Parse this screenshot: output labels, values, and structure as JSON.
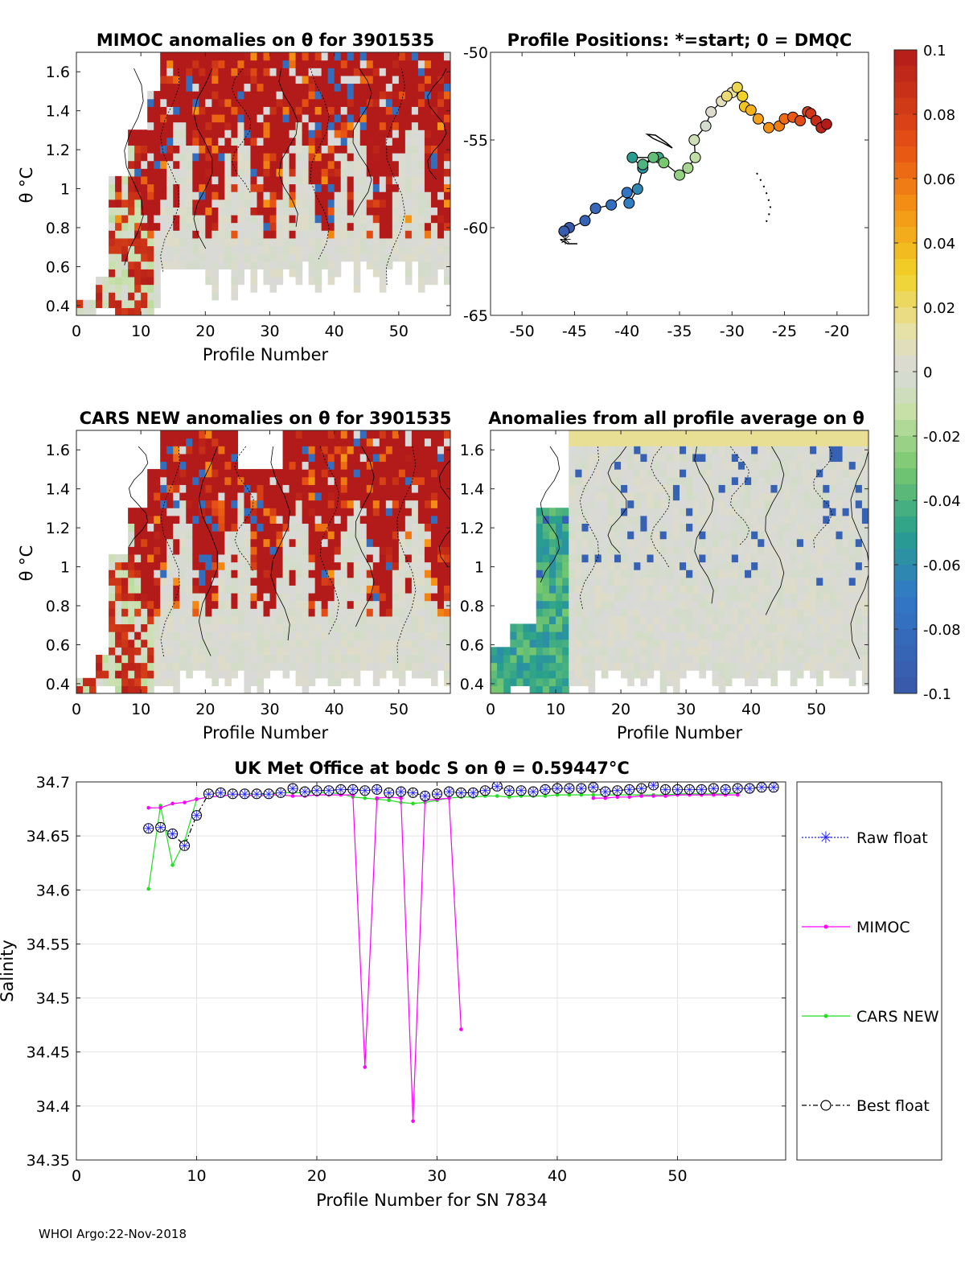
{
  "colors": {
    "raw_float": "#1f1fff",
    "mimoc": "#ff00ff",
    "cars": "#22dd22",
    "best_float": "#000000",
    "anomaly_high": "#b31a1a",
    "anomaly_zero": "#d9d9d9",
    "anomaly_low": "#3a57a8"
  },
  "footer": "WHOI Argo:22-Nov-2018",
  "colorbar": {
    "ticks": [
      "0.1",
      "0.08",
      "0.06",
      "0.04",
      "0.02",
      "0",
      "-0.02",
      "-0.04",
      "-0.06",
      "-0.08",
      "-0.1"
    ],
    "range": [
      -0.1,
      0.1
    ]
  },
  "chart_data": [
    {
      "id": "mimoc",
      "type": "heatmap",
      "title": "MIMOC anomalies on θ  for 3901535",
      "xlabel": "Profile Number",
      "ylabel": "θ °C",
      "xlim": [
        0,
        58
      ],
      "ylim": [
        0.35,
        1.7
      ],
      "x_ticks": [
        "0",
        "10",
        "20",
        "30",
        "40",
        "50"
      ],
      "y_ticks": [
        "0.4",
        "0.6",
        "0.8",
        "1",
        "1.2",
        "1.4",
        "1.6"
      ]
    },
    {
      "id": "positions",
      "type": "line",
      "title": "Profile Positions: *=start; 0 = DMQC",
      "xlim": [
        -53,
        -17
      ],
      "ylim": [
        -65,
        -50
      ],
      "x_ticks": [
        "-50",
        "-45",
        "-40",
        "-35",
        "-30",
        "-25",
        "-20"
      ],
      "y_ticks": [
        "-50",
        "-55",
        "-60",
        "-65"
      ],
      "lon": [
        -45.5,
        -46,
        -44,
        -43,
        -41.5,
        -40,
        -39.8,
        -39,
        -38.5,
        -39.5,
        -37,
        -38.5,
        -37.5,
        -36.5,
        -35,
        -34.2,
        -33.5,
        -33.6,
        -32.5,
        -32,
        -31,
        -30,
        -30.5,
        -29.5,
        -29,
        -28.8,
        -28.2,
        -27.5,
        -26.5,
        -25.5,
        -25,
        -24.2,
        -23.5,
        -22.8,
        -22.5,
        -22,
        -21.5,
        -21
      ],
      "lat": [
        -60,
        -60.2,
        -59.6,
        -58.9,
        -58.7,
        -58,
        -58.6,
        -57.8,
        -56.6,
        -56,
        -56,
        -56.4,
        -56,
        -56.3,
        -57,
        -56.6,
        -56,
        -55,
        -54.2,
        -53.4,
        -52.8,
        -52.3,
        -52.5,
        -52,
        -52.5,
        -53.1,
        -53.3,
        -53.8,
        -54.3,
        -54.2,
        -53.8,
        -53.7,
        -53.9,
        -53.4,
        -53.5,
        -53.9,
        -54.3,
        -54.1
      ]
    },
    {
      "id": "cars",
      "type": "heatmap",
      "title": "CARS NEW anomalies on θ for 3901535",
      "xlabel": "Profile Number",
      "ylabel": "θ °C",
      "xlim": [
        0,
        58
      ],
      "ylim": [
        0.35,
        1.7
      ],
      "x_ticks": [
        "0",
        "10",
        "20",
        "30",
        "40",
        "50"
      ],
      "y_ticks": [
        "0.4",
        "0.6",
        "0.8",
        "1",
        "1.2",
        "1.4",
        "1.6"
      ]
    },
    {
      "id": "avg",
      "type": "heatmap",
      "title": "Anomalies from all profile average on θ",
      "xlabel": "Profile Number",
      "xlim": [
        0,
        58
      ],
      "ylim": [
        0.35,
        1.7
      ],
      "x_ticks": [
        "0",
        "10",
        "20",
        "30",
        "40",
        "50"
      ],
      "y_ticks": [
        "0.4",
        "0.6",
        "0.8",
        "1",
        "1.2",
        "1.4",
        "1.6"
      ]
    },
    {
      "id": "salinity",
      "type": "line",
      "title": "UK Met Office at bodc S on θ = 0.59447°C",
      "xlabel": "Profile Number for SN 7834",
      "ylabel": "Salinity",
      "xlim": [
        0,
        59
      ],
      "ylim": [
        34.35,
        34.7
      ],
      "x_ticks": [
        "0",
        "10",
        "20",
        "30",
        "40",
        "50"
      ],
      "y_ticks": [
        "34.35",
        "34.4",
        "34.45",
        "34.5",
        "34.55",
        "34.6",
        "34.65",
        "34.7"
      ],
      "legend": [
        "Raw float",
        "MIMOC",
        "CARS NEW",
        "Best float"
      ],
      "x_float": [
        6,
        7,
        8,
        9,
        10,
        11,
        12,
        13,
        14,
        15,
        16,
        17,
        18,
        19,
        20,
        21,
        22,
        23,
        24,
        25,
        26,
        27,
        28,
        29,
        30,
        31,
        32,
        33,
        34,
        35,
        36,
        37,
        38,
        39,
        40,
        41,
        42,
        43,
        44,
        45,
        46,
        47,
        48,
        49,
        50,
        51,
        52,
        53,
        54,
        55,
        56,
        57,
        58
      ],
      "raw_float": [
        34.657,
        34.658,
        34.652,
        34.641,
        34.669,
        34.689,
        34.69,
        34.689,
        34.689,
        34.689,
        34.689,
        34.69,
        34.694,
        34.691,
        34.692,
        34.692,
        34.693,
        34.693,
        34.692,
        34.693,
        34.69,
        34.691,
        34.69,
        34.687,
        34.689,
        34.691,
        34.69,
        34.69,
        34.692,
        34.696,
        34.692,
        34.692,
        34.691,
        34.693,
        34.694,
        34.694,
        34.694,
        34.695,
        34.691,
        34.692,
        34.693,
        34.694,
        34.697,
        34.693,
        34.693,
        34.693,
        34.693,
        34.694,
        34.693,
        34.694,
        34.694,
        34.695,
        34.695
      ],
      "x_mimoc": [
        6,
        7,
        8,
        9,
        10,
        11,
        12,
        13,
        14,
        15,
        16,
        17,
        18,
        19,
        20,
        21,
        22,
        23,
        24,
        25,
        26,
        27,
        28,
        29,
        30,
        31,
        32
      ],
      "mimoc": [
        34.676,
        34.676,
        34.68,
        34.681,
        34.684,
        34.686,
        34.687,
        34.688,
        34.688,
        34.687,
        34.688,
        34.688,
        34.687,
        34.687,
        34.688,
        34.688,
        34.688,
        34.688,
        34.436,
        34.685,
        34.686,
        34.685,
        34.386,
        34.683,
        34.684,
        34.685,
        34.471
      ],
      "x_cars": [
        6,
        7,
        8,
        9,
        10,
        11,
        12,
        13,
        14,
        15,
        16,
        17,
        18,
        19,
        20,
        21,
        22,
        23,
        24,
        25,
        26,
        27,
        28,
        29,
        30,
        31,
        32,
        33,
        34,
        35,
        36,
        37,
        38,
        39,
        40,
        41,
        42,
        43,
        44,
        45,
        46,
        47,
        48,
        49,
        50,
        51,
        52,
        53,
        54,
        55
      ],
      "cars": [
        34.601,
        34.678,
        34.623,
        34.645,
        34.684,
        34.686,
        34.687,
        34.688,
        34.689,
        34.689,
        34.689,
        34.69,
        34.69,
        34.69,
        34.69,
        34.69,
        34.689,
        34.686,
        34.685,
        34.684,
        34.683,
        34.681,
        34.68,
        34.681,
        34.683,
        34.685,
        34.686,
        34.686,
        34.687,
        34.687,
        34.686,
        34.687,
        34.687,
        34.687,
        34.688,
        34.688,
        34.688,
        34.688,
        34.688,
        34.688,
        34.688,
        34.688,
        34.688,
        34.688,
        34.689,
        34.689,
        34.689,
        34.689,
        34.689,
        34.69
      ],
      "x_mimoc_tail": [
        43,
        44,
        45,
        46,
        47,
        48,
        49,
        50,
        51,
        52,
        53,
        54,
        55
      ],
      "mimoc_tail": [
        34.685,
        34.685,
        34.686,
        34.686,
        34.687,
        34.687,
        34.687,
        34.688,
        34.688,
        34.688,
        34.688,
        34.688,
        34.688
      ]
    }
  ]
}
